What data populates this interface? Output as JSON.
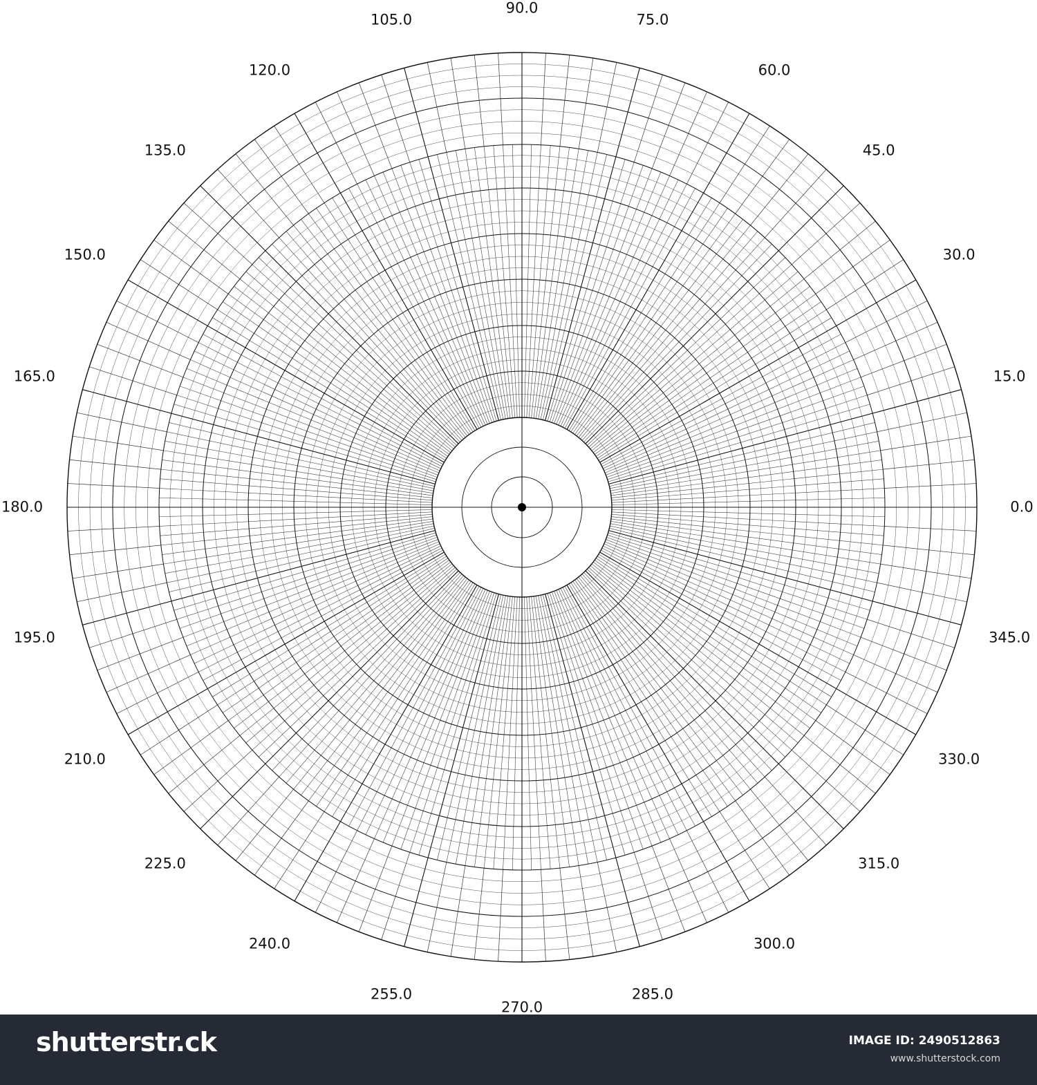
{
  "diagram": {
    "type": "polar-grid",
    "angle_labels": [
      "0.0",
      "15.0",
      "30.0",
      "45.0",
      "60.0",
      "75.0",
      "90.0",
      "105.0",
      "120.0",
      "135.0",
      "150.0",
      "165.0",
      "180.0",
      "195.0",
      "210.0",
      "225.0",
      "240.0",
      "255.0",
      "270.0",
      "285.0",
      "300.0",
      "315.0",
      "330.0",
      "345.0"
    ],
    "angle_step_degrees": 15,
    "major_radial_interval_degrees": 15,
    "minor_radial_interval_outer_degrees": 3,
    "minor_radial_interval_inner_degrees": 1.5,
    "ring_count": 10,
    "stroke_color": "#111111",
    "center_dot_color": "#000000"
  },
  "footer": {
    "brand": "shutterstr.ck",
    "image_id": "IMAGE ID: 2490512863",
    "site": "www.shutterstock.com",
    "background": "#262a35"
  }
}
